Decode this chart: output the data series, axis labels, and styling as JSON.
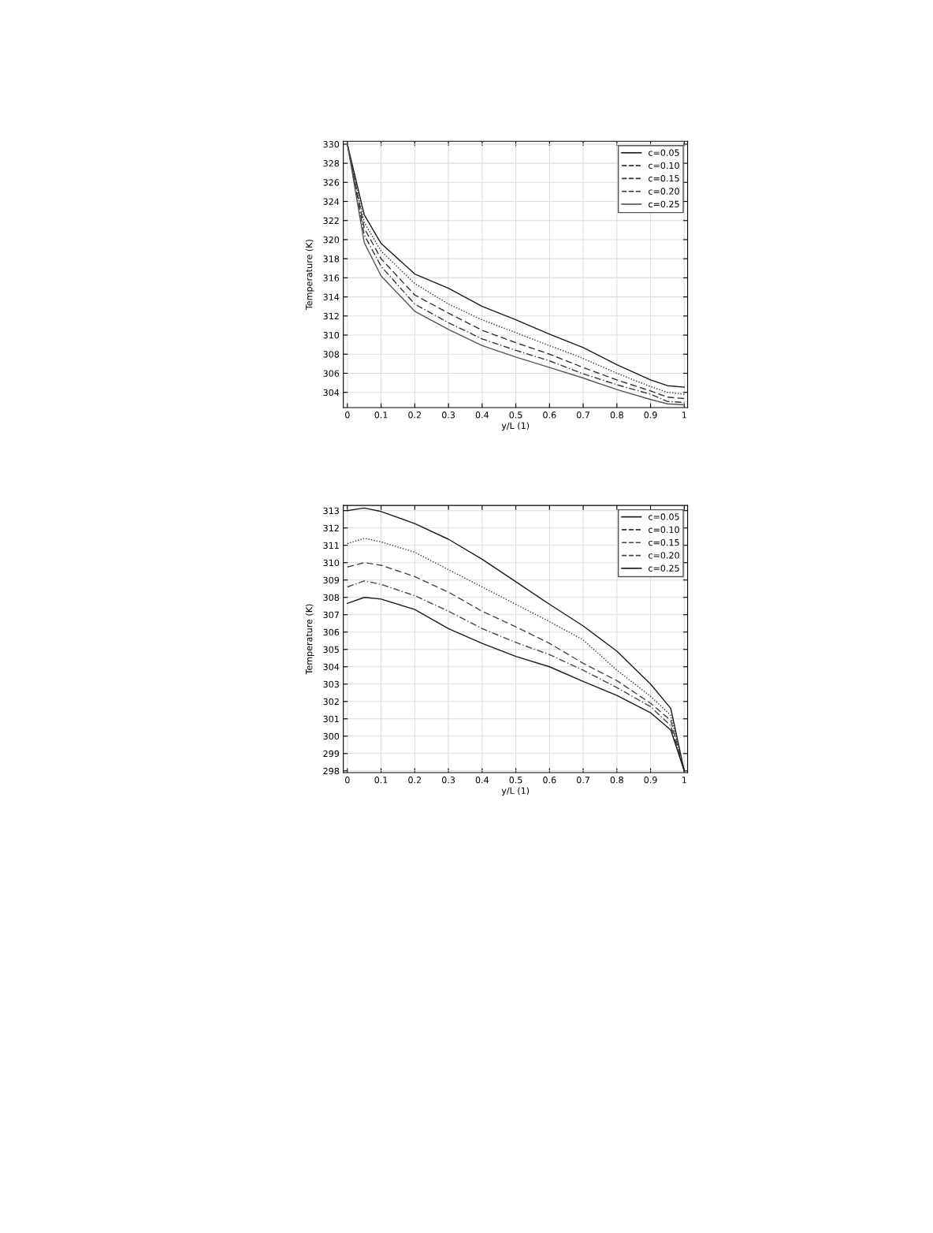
{
  "chart_data": [
    {
      "type": "line",
      "xlabel": "y/L (1)",
      "ylabel": "Temperature (K)",
      "x": [
        0,
        0.05,
        0.1,
        0.2,
        0.3,
        0.4,
        0.5,
        0.6,
        0.7,
        0.8,
        0.9,
        0.95,
        1
      ],
      "xlim": [
        -0.012,
        1.01
      ],
      "ylim": [
        302.4,
        330.3
      ],
      "xticks": [
        0,
        0.1,
        0.2,
        0.3,
        0.4,
        0.5,
        0.6,
        0.7,
        0.8,
        0.9,
        1
      ],
      "yticks": [
        304,
        306,
        308,
        310,
        312,
        314,
        316,
        318,
        320,
        322,
        324,
        326,
        328,
        330
      ],
      "grid": true,
      "legend": "top right",
      "series": [
        {
          "name": "c=0.05",
          "color": "#1a1a1a",
          "line_style": "solid",
          "values": [
            330,
            322.6,
            319.6,
            316.4,
            314.9,
            313.0,
            311.6,
            310.1,
            308.7,
            306.9,
            305.3,
            304.7,
            304.55
          ]
        },
        {
          "name": "c=0.10",
          "color": "#333333",
          "line_style": "dotted",
          "values": [
            330,
            321.8,
            318.8,
            315.4,
            313.25,
            311.6,
            310.25,
            308.9,
            307.55,
            306.0,
            304.6,
            304.0,
            303.8
          ]
        },
        {
          "name": "c=0.15",
          "color": "#333333",
          "line_style": "dashed",
          "values": [
            330,
            321.2,
            318.0,
            314.2,
            312.3,
            310.5,
            309.2,
            308.0,
            306.6,
            305.3,
            304.15,
            303.5,
            303.35
          ]
        },
        {
          "name": "c=0.20",
          "color": "#333333",
          "line_style": "dashdot",
          "values": [
            330,
            320.5,
            317.2,
            313.25,
            311.3,
            309.6,
            308.4,
            307.3,
            305.95,
            304.8,
            303.8,
            303.05,
            302.95
          ]
        },
        {
          "name": "c=0.25",
          "color": "#555555",
          "line_style": "solid",
          "values": [
            330,
            319.7,
            316.2,
            312.5,
            310.6,
            308.9,
            307.7,
            306.6,
            305.5,
            304.3,
            303.25,
            302.8,
            302.7
          ]
        }
      ]
    },
    {
      "type": "line",
      "xlabel": "y/L (1)",
      "ylabel": "Temperature (K)",
      "x": [
        0,
        0.05,
        0.1,
        0.2,
        0.3,
        0.4,
        0.5,
        0.6,
        0.7,
        0.8,
        0.9,
        0.96,
        1
      ],
      "xlim": [
        -0.012,
        1.01
      ],
      "ylim": [
        297.9,
        313.3
      ],
      "xticks": [
        0,
        0.1,
        0.2,
        0.3,
        0.4,
        0.5,
        0.6,
        0.7,
        0.8,
        0.9,
        1
      ],
      "yticks": [
        298,
        299,
        300,
        301,
        302,
        303,
        304,
        305,
        306,
        307,
        308,
        309,
        310,
        311,
        312,
        313
      ],
      "grid": true,
      "legend": "top right",
      "series": [
        {
          "name": "c=0.05",
          "color": "#1a1a1a",
          "line_style": "solid",
          "values": [
            313.0,
            313.15,
            312.95,
            312.25,
            311.35,
            310.2,
            308.9,
            307.6,
            306.35,
            304.9,
            303.0,
            301.6,
            298.0
          ]
        },
        {
          "name": "c=0.10",
          "color": "#333333",
          "line_style": "dotted",
          "values": [
            311.1,
            311.4,
            311.2,
            310.6,
            309.6,
            308.6,
            307.6,
            306.6,
            305.55,
            303.8,
            302.3,
            301.2,
            298.0
          ]
        },
        {
          "name": "c=0.15",
          "color": "#444444",
          "line_style": "dashed",
          "values": [
            309.75,
            310.0,
            309.85,
            309.2,
            308.3,
            307.2,
            306.3,
            305.35,
            304.2,
            303.2,
            301.9,
            300.9,
            298.0
          ]
        },
        {
          "name": "c=0.20",
          "color": "#444444",
          "line_style": "dashdot",
          "values": [
            308.6,
            308.95,
            308.75,
            308.1,
            307.2,
            306.2,
            305.4,
            304.7,
            303.8,
            302.8,
            301.7,
            300.6,
            298.0
          ]
        },
        {
          "name": "c=0.25",
          "color": "#1a1a1a",
          "line_style": "solid",
          "values": [
            307.65,
            308.0,
            307.9,
            307.3,
            306.2,
            305.35,
            304.6,
            304.0,
            303.15,
            302.35,
            301.35,
            300.35,
            298.0
          ]
        }
      ]
    }
  ]
}
